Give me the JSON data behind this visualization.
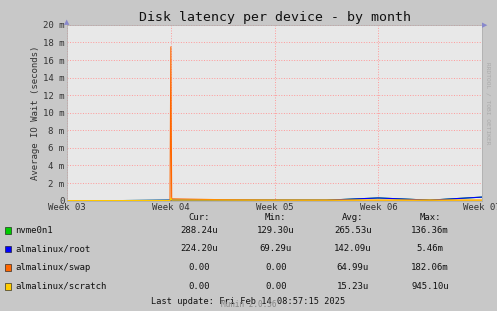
{
  "title": "Disk latency per device - by month",
  "ylabel": "Average IO Wait (seconds)",
  "background_color": "#c8c8c8",
  "plot_bg_color": "#e8e8e8",
  "grid_color": "#ff9999",
  "x_labels": [
    "Week 03",
    "Week 04",
    "Week 05",
    "Week 06",
    "Week 07"
  ],
  "x_ticks": [
    0,
    125,
    250,
    375,
    500
  ],
  "ylim": [
    0,
    20
  ],
  "ytick_labels": [
    "0",
    "2 m",
    "4 m",
    "6 m",
    "8 m",
    "10 m",
    "12 m",
    "14 m",
    "16 m",
    "18 m",
    "20 m"
  ],
  "ytick_values": [
    0,
    2,
    4,
    6,
    8,
    10,
    12,
    14,
    16,
    18,
    20
  ],
  "series": [
    {
      "label": "nvme0n1",
      "color": "#00cc00",
      "data_x": [
        0,
        62,
        125,
        126,
        188,
        250,
        313,
        375,
        437,
        500
      ],
      "data_y": [
        0,
        0,
        0.05,
        0.05,
        0.05,
        0.05,
        0.05,
        0.3,
        0.05,
        0.4
      ]
    },
    {
      "label": "almalinux/root",
      "color": "#0000ff",
      "data_x": [
        0,
        62,
        125,
        126,
        188,
        250,
        313,
        375,
        437,
        500
      ],
      "data_y": [
        0,
        0,
        0.05,
        0.05,
        0.05,
        0.05,
        0.05,
        0.3,
        0.05,
        0.4
      ]
    },
    {
      "label": "almalinux/swap",
      "color": "#ff6600",
      "data_x": [
        0,
        62,
        124,
        125,
        126,
        188,
        250,
        313,
        375,
        437,
        500
      ],
      "data_y": [
        0,
        0,
        0,
        17.5,
        0.2,
        0.1,
        0.05,
        0.05,
        0.05,
        0.05,
        0.05
      ]
    },
    {
      "label": "almalinux/scratch",
      "color": "#ffcc00",
      "data_x": [
        0,
        62,
        124,
        125,
        126,
        188,
        250,
        313,
        375,
        437,
        500
      ],
      "data_y": [
        0,
        0,
        0,
        0.3,
        0.05,
        0.05,
        0.05,
        0.05,
        0.05,
        0.05,
        0.05
      ]
    }
  ],
  "legend_entries": [
    {
      "label": "nvme0n1",
      "cur": "288.24u",
      "min": "129.30u",
      "avg": "265.53u",
      "max": "136.36m"
    },
    {
      "label": "almalinux/root",
      "cur": "224.20u",
      "min": "69.29u",
      "avg": "142.09u",
      "max": "5.46m"
    },
    {
      "label": "almalinux/swap",
      "cur": "0.00",
      "min": "0.00",
      "avg": "64.99u",
      "max": "182.06m"
    },
    {
      "label": "almalinux/scratch",
      "cur": "0.00",
      "min": "0.00",
      "avg": "15.23u",
      "max": "945.10u"
    }
  ],
  "legend_colors": [
    "#00cc00",
    "#0000ff",
    "#ff6600",
    "#ffcc00"
  ],
  "footer_text": "Last update: Fri Feb 14 08:57:15 2025",
  "munin_text": "Munin 2.0.56",
  "right_label": "RRDTOOL / TOBI OETIKER"
}
